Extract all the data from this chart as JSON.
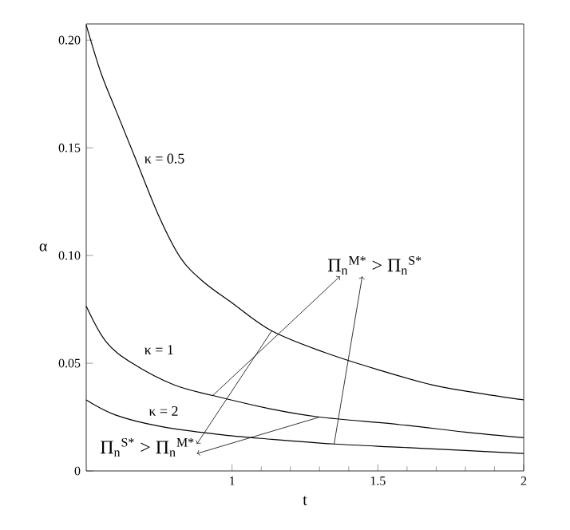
{
  "chart_data": {
    "type": "line",
    "xlabel": "t",
    "ylabel": "α",
    "xlim": [
      0.5,
      2
    ],
    "ylim": [
      0,
      0.2075
    ],
    "xticks": [
      1,
      1.5,
      2
    ],
    "yticks": [
      0,
      0.05,
      {
        "value": 0.1,
        "label": "0.10"
      },
      0.15,
      {
        "value": 0.2,
        "label": "0.20"
      }
    ],
    "series": [
      {
        "name": "κ = 0.5",
        "color": "#000000",
        "x": [
          0.5,
          0.55,
          0.6,
          0.669,
          0.75,
          0.823,
          0.9,
          1.0,
          1.136,
          1.317,
          1.5,
          1.685,
          1.85,
          2
        ],
        "values": [
          0.207,
          0.185,
          0.168,
          0.145,
          0.118,
          0.099,
          0.088,
          0.078,
          0.065,
          0.055,
          0.047,
          0.04,
          0.036,
          0.033
        ]
      },
      {
        "name": "κ = 1",
        "color": "#000000",
        "x": [
          0.5,
          0.568,
          0.658,
          0.8,
          0.934,
          1.136,
          1.3,
          1.576,
          1.8,
          2
        ],
        "values": [
          0.0765,
          0.06,
          0.05,
          0.04,
          0.035,
          0.0287,
          0.025,
          0.0215,
          0.018,
          0.0154
        ]
      },
      {
        "name": "κ = 2",
        "color": "#000000",
        "x": [
          0.5,
          0.6,
          0.75,
          0.95,
          1.136,
          1.35,
          1.576,
          1.8,
          2
        ],
        "values": [
          0.033,
          0.026,
          0.0208,
          0.017,
          0.0147,
          0.0125,
          0.011,
          0.0095,
          0.0081
        ]
      }
    ],
    "annotations": [
      {
        "text": "Π$_{n}$$^{M*}$ > Π$_{n}$$^{S*}$",
        "x": 0.934,
        "y": 0.035
      },
      {
        "text": "Π$_{n}$$^{S*}$ > Π$_{n}$$^{M*}$",
        "x": 1.136,
        "y": 0.065
      }
    ]
  }
}
